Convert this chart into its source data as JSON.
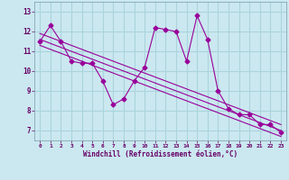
{
  "xlabel": "Windchill (Refroidissement éolien,°C)",
  "background_color": "#cbe8f0",
  "grid_color": "#aad4dc",
  "line_color": "#990099",
  "x_hours": [
    0,
    1,
    2,
    3,
    4,
    5,
    6,
    7,
    8,
    9,
    10,
    11,
    12,
    13,
    14,
    15,
    16,
    17,
    18,
    19,
    20,
    21,
    22,
    23
  ],
  "y_temp": [
    11.5,
    12.3,
    11.5,
    10.5,
    10.4,
    10.4,
    9.5,
    8.3,
    8.6,
    9.5,
    10.2,
    12.2,
    12.1,
    12.0,
    10.5,
    12.8,
    11.6,
    9.0,
    8.1,
    7.8,
    7.8,
    7.3,
    7.3,
    6.9
  ],
  "y_lin1": [
    11.6,
    11.4,
    11.2,
    11.0,
    10.8,
    10.6,
    10.4,
    10.2,
    10.0,
    9.8,
    9.6,
    9.4,
    9.2,
    9.0,
    8.8,
    8.6,
    8.4,
    8.2,
    8.0,
    7.8,
    7.6,
    7.4,
    7.2,
    7.0
  ],
  "y_lin2": [
    11.9,
    11.7,
    11.5,
    11.3,
    11.1,
    10.9,
    10.7,
    10.5,
    10.3,
    10.1,
    9.9,
    9.7,
    9.5,
    9.3,
    9.1,
    8.9,
    8.7,
    8.5,
    8.3,
    8.1,
    7.9,
    7.7,
    7.5,
    7.3
  ],
  "y_lin3": [
    11.3,
    11.1,
    10.9,
    10.7,
    10.5,
    10.3,
    10.1,
    9.9,
    9.7,
    9.5,
    9.3,
    9.1,
    8.9,
    8.7,
    8.5,
    8.3,
    8.1,
    7.9,
    7.7,
    7.5,
    7.3,
    7.1,
    6.9,
    6.7
  ],
  "ylim": [
    6.5,
    13.5
  ],
  "yticks": [
    7,
    8,
    9,
    10,
    11,
    12,
    13
  ],
  "marker": "D",
  "marker_size": 2.5,
  "line_width": 0.8
}
